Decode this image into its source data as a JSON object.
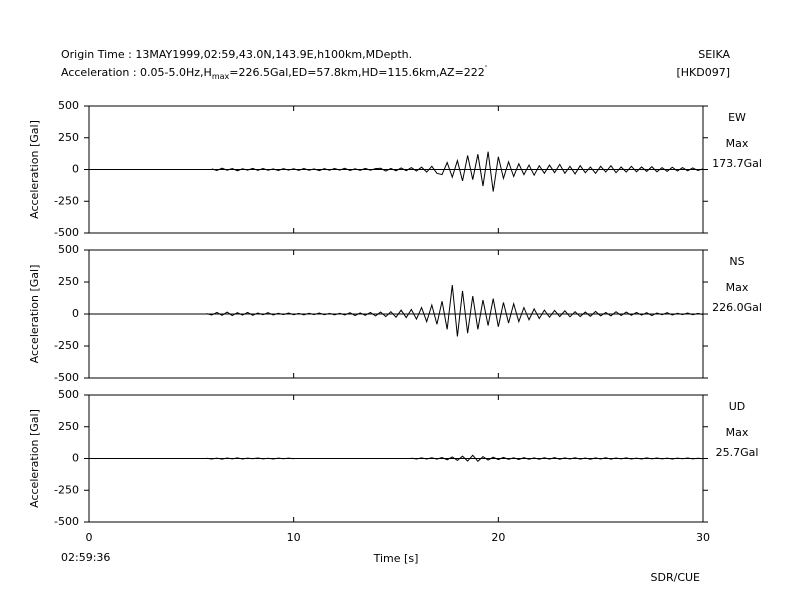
{
  "header": {
    "origin_time": "Origin Time : 13MAY1999,02:59,43.0N,143.9E,h100km,MDepth.",
    "acc_prefix": "Acceleration : 0.05-5.0Hz,H",
    "acc_sub": "max",
    "acc_rest": "=226.5Gal,ED=57.8km,HD=115.6km,AZ=222",
    "acc_sup": "'",
    "station": "SEIKA",
    "code": "[HKD097]"
  },
  "footer": {
    "start_time": "02:59:36",
    "credit": "SDR/CUE"
  },
  "chart_data": [
    {
      "type": "line",
      "component": "EW",
      "max_label": "Max",
      "max_value": "173.7Gal",
      "ylabel": "Acceleration [Gal]",
      "ylim": [
        -500,
        500
      ],
      "yticks": [
        -500,
        -250,
        0,
        250,
        500
      ],
      "xlim": [
        0,
        30
      ],
      "xticks": [
        0,
        10,
        20,
        30
      ],
      "color": "#000000",
      "x": [
        5.75,
        6,
        6.25,
        6.5,
        6.75,
        7,
        7.25,
        7.5,
        7.75,
        8,
        8.25,
        8.5,
        8.75,
        9,
        9.25,
        9.5,
        9.75,
        10,
        10.25,
        10.5,
        10.75,
        11,
        11.25,
        11.5,
        11.75,
        12,
        12.25,
        12.5,
        12.75,
        13,
        13.25,
        13.5,
        13.75,
        14,
        14.25,
        14.5,
        14.75,
        15,
        15.25,
        15.5,
        15.75,
        16,
        16.25,
        16.5,
        16.75,
        17,
        17.25,
        17.5,
        17.75,
        18,
        18.25,
        18.5,
        18.75,
        19,
        19.25,
        19.5,
        19.75,
        20,
        20.25,
        20.5,
        20.75,
        21,
        21.25,
        21.5,
        21.75,
        22,
        22.25,
        22.5,
        22.75,
        23,
        23.25,
        23.5,
        23.75,
        24,
        24.25,
        24.5,
        24.75,
        25,
        25.25,
        25.5,
        25.75,
        26,
        26.25,
        26.5,
        26.75,
        27,
        27.25,
        27.5,
        27.75,
        28,
        28.25,
        28.5,
        28.75,
        29,
        29.25,
        29.5,
        29.75,
        30
      ],
      "values": [
        null,
        5,
        -8,
        10,
        -6,
        8,
        -10,
        6,
        -5,
        9,
        -7,
        8,
        -6,
        5,
        -8,
        7,
        -5,
        6,
        -7,
        8,
        -6,
        5,
        -9,
        7,
        -6,
        8,
        -5,
        10,
        -8,
        6,
        -7,
        9,
        -6,
        7,
        10,
        -12,
        8,
        -10,
        12,
        -9,
        15,
        -12,
        18,
        -20,
        25,
        -30,
        -40,
        55,
        -60,
        70,
        -90,
        110,
        -80,
        120,
        -130,
        140,
        -174,
        100,
        -70,
        60,
        -55,
        45,
        -40,
        35,
        -45,
        30,
        -30,
        35,
        -25,
        40,
        -30,
        25,
        -35,
        30,
        -25,
        20,
        -30,
        25,
        -20,
        30,
        -25,
        20,
        -20,
        25,
        -18,
        20,
        -15,
        22,
        -18,
        15,
        -15,
        18,
        -12,
        15,
        -10,
        12,
        -8,
        5
      ]
    },
    {
      "type": "line",
      "component": "NS",
      "max_label": "Max",
      "max_value": "226.0Gal",
      "ylabel": "Acceleration [Gal]",
      "ylim": [
        -500,
        500
      ],
      "yticks": [
        -500,
        -250,
        0,
        250,
        500
      ],
      "xlim": [
        0,
        30
      ],
      "xticks": [
        0,
        10,
        20,
        30
      ],
      "color": "#000000",
      "x": [
        5.75,
        6,
        6.25,
        6.5,
        6.75,
        7,
        7.25,
        7.5,
        7.75,
        8,
        8.25,
        8.5,
        8.75,
        9,
        9.25,
        9.5,
        9.75,
        10,
        10.25,
        10.5,
        10.75,
        11,
        11.25,
        11.5,
        11.75,
        12,
        12.25,
        12.5,
        12.75,
        13,
        13.25,
        13.5,
        13.75,
        14,
        14.25,
        14.5,
        14.75,
        15,
        15.25,
        15.5,
        15.75,
        16,
        16.25,
        16.5,
        16.75,
        17,
        17.25,
        17.5,
        17.75,
        18,
        18.25,
        18.5,
        18.75,
        19,
        19.25,
        19.5,
        19.75,
        20,
        20.25,
        20.5,
        20.75,
        21,
        21.25,
        21.5,
        21.75,
        22,
        22.25,
        22.5,
        22.75,
        23,
        23.25,
        23.5,
        23.75,
        24,
        24.25,
        24.5,
        24.75,
        25,
        25.25,
        25.5,
        25.75,
        26,
        26.25,
        26.5,
        26.75,
        27,
        27.25,
        27.5,
        27.75,
        28,
        28.25,
        28.5,
        28.75,
        29,
        29.25,
        29.5,
        29.75,
        30
      ],
      "values": [
        3,
        -8,
        12,
        -10,
        15,
        -12,
        10,
        -8,
        12,
        -10,
        8,
        -6,
        10,
        -8,
        6,
        -5,
        8,
        -6,
        5,
        -7,
        6,
        -5,
        8,
        -6,
        5,
        -7,
        6,
        -8,
        10,
        -12,
        8,
        -10,
        12,
        -15,
        15,
        -20,
        18,
        -25,
        30,
        -28,
        35,
        -40,
        50,
        -60,
        70,
        -80,
        100,
        -120,
        226,
        -175,
        180,
        -150,
        140,
        -120,
        110,
        -90,
        120,
        -100,
        90,
        -70,
        80,
        -60,
        50,
        -45,
        40,
        -35,
        30,
        -25,
        28,
        -20,
        25,
        -22,
        18,
        -20,
        15,
        -18,
        20,
        -15,
        12,
        -15,
        18,
        -12,
        15,
        -10,
        12,
        -8,
        10,
        -12,
        8,
        -6,
        10,
        -8,
        6,
        -5,
        8,
        -6,
        5,
        -4
      ]
    },
    {
      "type": "line",
      "component": "UD",
      "max_label": "Max",
      "max_value": "25.7Gal",
      "ylabel": "Acceleration [Gal]",
      "xlabel": "Time [s]",
      "ylim": [
        -500,
        500
      ],
      "yticks": [
        -500,
        -250,
        0,
        250,
        500
      ],
      "xlim": [
        0,
        30
      ],
      "xticks": [
        0,
        10,
        20,
        30
      ],
      "color": "#000000",
      "x": [
        5.75,
        6,
        6.25,
        6.5,
        6.75,
        7,
        7.25,
        7.5,
        7.75,
        8,
        8.25,
        8.5,
        8.75,
        9,
        9.25,
        9.5,
        9.75,
        10,
        10.25,
        10.5,
        10.75,
        11,
        11.25,
        11.5,
        11.75,
        12,
        12.25,
        12.5,
        12.75,
        13,
        13.25,
        13.5,
        13.75,
        14,
        14.25,
        14.5,
        14.75,
        15,
        15.25,
        15.5,
        15.75,
        16,
        16.25,
        16.5,
        16.75,
        17,
        17.25,
        17.5,
        17.75,
        18,
        18.25,
        18.5,
        18.75,
        19,
        19.25,
        19.5,
        19.75,
        20,
        20.25,
        20.5,
        20.75,
        21,
        21.25,
        21.5,
        21.75,
        22,
        22.25,
        22.5,
        22.75,
        23,
        23.25,
        23.5,
        23.75,
        24,
        24.25,
        24.5,
        24.75,
        25,
        25.25,
        25.5,
        25.75,
        26,
        26.25,
        26.5,
        26.75,
        27,
        27.25,
        27.5,
        27.75,
        28,
        28.25,
        28.5,
        28.75,
        29,
        29.25,
        29.5,
        29.75,
        30
      ],
      "values": [
        2,
        -4,
        3,
        -5,
        4,
        -3,
        5,
        -4,
        3,
        -2,
        4,
        -3,
        2,
        -4,
        3,
        -2,
        3,
        -2,
        null,
        null,
        null,
        null,
        null,
        null,
        null,
        null,
        null,
        null,
        null,
        null,
        null,
        null,
        null,
        null,
        null,
        null,
        null,
        null,
        null,
        null,
        3,
        -4,
        5,
        -4,
        6,
        -5,
        8,
        -10,
        12,
        -15,
        18,
        -20,
        25.7,
        -22,
        15,
        -12,
        10,
        -8,
        9,
        -7,
        6,
        -8,
        7,
        -6,
        5,
        -6,
        6,
        -5,
        7,
        -6,
        5,
        -4,
        6,
        -5,
        4,
        -6,
        5,
        -4,
        6,
        -5,
        4,
        -3,
        5,
        -4,
        3,
        -4,
        5,
        -3,
        4,
        -3,
        3,
        -4,
        3,
        -2,
        4,
        -3,
        2,
        -2
      ]
    }
  ]
}
